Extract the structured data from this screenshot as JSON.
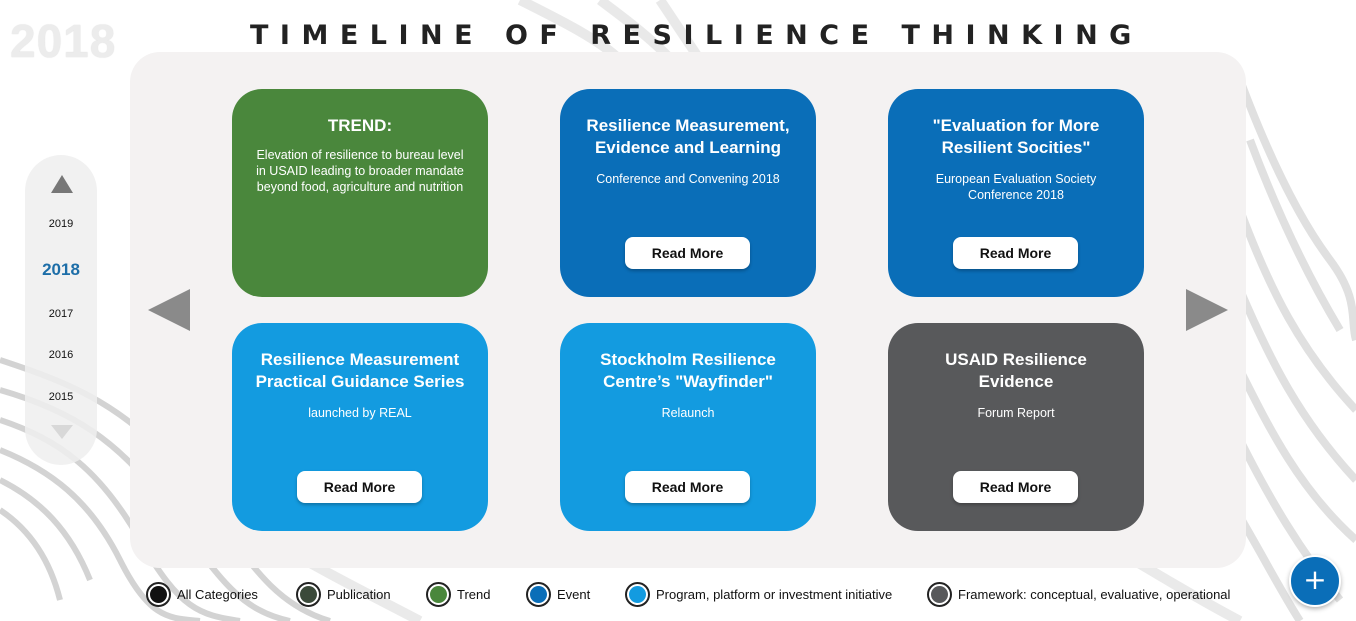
{
  "header": {
    "current_year_ghost": "2018",
    "title": "TIMELINE OF RESILIENCE THINKING"
  },
  "year_rail": {
    "up_icon": "triangle-up-icon",
    "down_icon": "chevron-down-icon",
    "years": [
      "2019",
      "2018",
      "2017",
      "2016",
      "2015"
    ],
    "active_year": "2018"
  },
  "navigation": {
    "prev_icon": "triangle-left-icon",
    "next_icon": "triangle-right-icon"
  },
  "cards": [
    {
      "category": "Trend",
      "color": "#4a873c",
      "title": "TREND:",
      "subtitle": "Elevation of resilience to bureau level in USAID leading to broader mandate beyond food, agriculture and nutrition",
      "button": ""
    },
    {
      "category": "Event",
      "color": "#0a6eb8",
      "title": "Resilience Measurement, Evidence and Learning",
      "subtitle": "Conference and Convening 2018",
      "button": "Read More"
    },
    {
      "category": "Event",
      "color": "#0a6eb8",
      "title": "\"Evaluation for More Resilient Socities\"",
      "subtitle": "European Evaluation Society Conference 2018",
      "button": "Read More"
    },
    {
      "category": "Program, platform or investment initiative",
      "color": "#139be0",
      "title": "Resilience Measurement Practical Guidance Series",
      "subtitle": "launched by REAL",
      "button": "Read More"
    },
    {
      "category": "Program, platform or investment initiative",
      "color": "#139be0",
      "title": "Stockholm Resilience Centre’s \"Wayfinder\"",
      "subtitle": "Relaunch",
      "button": "Read More"
    },
    {
      "category": "Framework: conceptual, evaluative, operational",
      "color": "#58595b",
      "title": "USAID Resilience Evidence",
      "subtitle": "Forum Report",
      "button": "Read More"
    }
  ],
  "legend": [
    {
      "label": "All Categories",
      "color": "#111111"
    },
    {
      "label": "Publication",
      "color": "#3b4a3a"
    },
    {
      "label": "Trend",
      "color": "#4a873c"
    },
    {
      "label": "Event",
      "color": "#0a6eb8"
    },
    {
      "label": "Program, platform or investment initiative",
      "color": "#139be0"
    },
    {
      "label": "Framework: conceptual, evaluative, operational",
      "color": "#58595b"
    }
  ],
  "fab": {
    "label": "+",
    "icon": "plus-icon"
  }
}
